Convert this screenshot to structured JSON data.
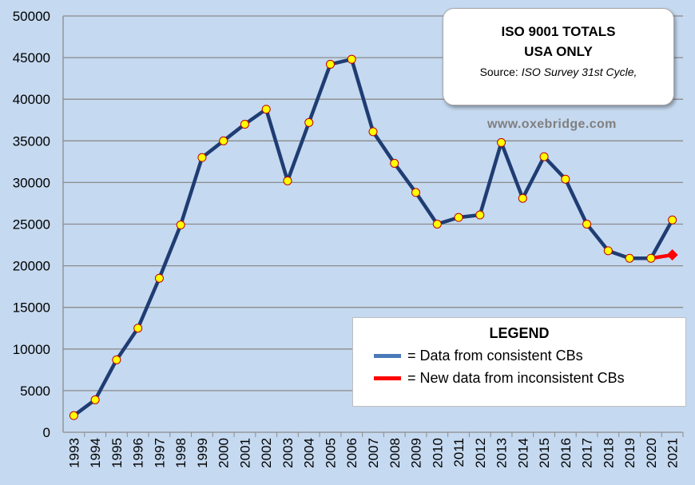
{
  "chart_data": {
    "type": "line",
    "title": "ISO 9001 TOTALS",
    "subtitle": "USA ONLY",
    "source_prefix": "Source: ",
    "source_text": "ISO Survey 31st Cycle,",
    "website": "www.oxebridge.com",
    "xlabel": "",
    "ylabel": "",
    "ylim": [
      0,
      50000
    ],
    "yticks": [
      0,
      5000,
      10000,
      15000,
      20000,
      25000,
      30000,
      35000,
      40000,
      45000,
      50000
    ],
    "x": [
      "1993",
      "1994",
      "1995",
      "1996",
      "1997",
      "1998",
      "1999",
      "2000",
      "2001",
      "2002",
      "2003",
      "2004",
      "2005",
      "2006",
      "2007",
      "2008",
      "2009",
      "2010",
      "2011",
      "2012",
      "2013",
      "2014",
      "2015",
      "2016",
      "2017",
      "2018",
      "2019",
      "2020",
      "2021"
    ],
    "series": [
      {
        "name": "= Data from consistent CBs",
        "color": "#1f3d73",
        "values": [
          2000,
          3900,
          8700,
          12500,
          18500,
          24900,
          33000,
          35000,
          37000,
          38800,
          30200,
          37200,
          44200,
          44800,
          36100,
          32300,
          28800,
          25000,
          25800,
          26100,
          34800,
          28100,
          33100,
          30400,
          25000,
          21800,
          20900,
          20900,
          25500
        ]
      },
      {
        "name": "= New data from inconsistent CBs",
        "color": "#ff0000",
        "x": [
          "2020",
          "2021"
        ],
        "values": [
          20900,
          21300
        ]
      }
    ],
    "legend": {
      "title": "LEGEND",
      "entries": [
        {
          "label": "= Data from consistent CBs",
          "color": "#4a7ab8"
        },
        {
          "label": "= New data from inconsistent CBs",
          "color": "#ff0000"
        }
      ]
    },
    "grid": true,
    "marker_color": "#ffff00",
    "marker_edge": "#c00000",
    "background": "#c5d9f0"
  }
}
